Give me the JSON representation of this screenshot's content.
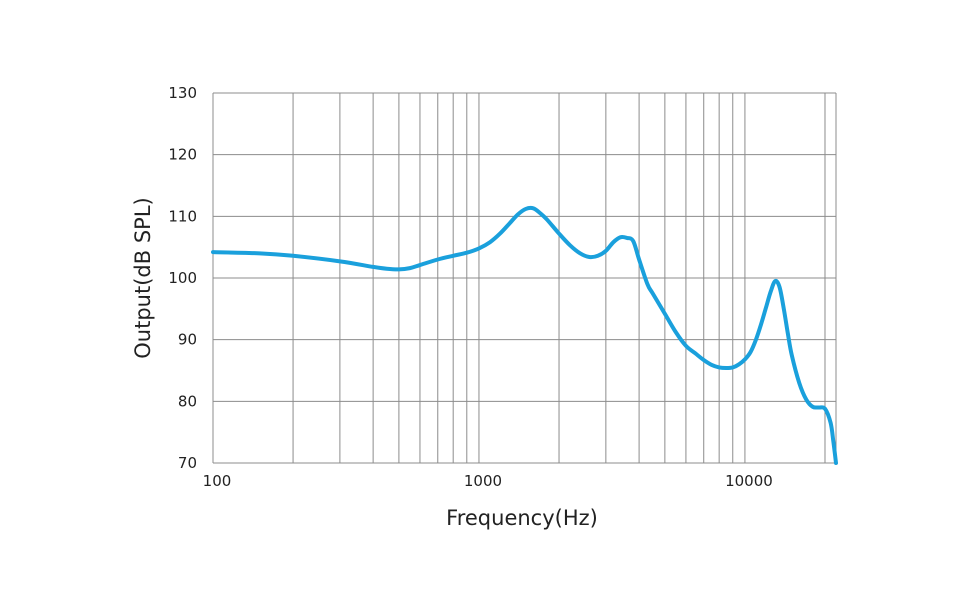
{
  "chart_data": {
    "type": "line",
    "title": "",
    "xlabel": "Frequency(Hz)",
    "ylabel": "Output(dB SPL)",
    "x_scale": "log",
    "xlim": [
      100,
      22000
    ],
    "ylim": [
      70,
      130
    ],
    "grid": true,
    "x_tick_labels": [
      "100",
      "1000",
      "10000"
    ],
    "x_tick_values": [
      100,
      1000,
      10000
    ],
    "y_tick_labels": [
      "130",
      "120",
      "110",
      "100",
      "90",
      "80",
      "70"
    ],
    "y_tick_values": [
      130,
      120,
      110,
      100,
      90,
      80,
      70
    ],
    "line_color": "#1aa0dc",
    "grid_color": "#8c8c8c",
    "series": [
      {
        "x": [
          100,
          150,
          200,
          300,
          400,
          450,
          500,
          550,
          600,
          700,
          800,
          900,
          1000,
          1100,
          1200,
          1300,
          1400,
          1500,
          1600,
          1700,
          1800,
          2000,
          2200,
          2400,
          2600,
          2800,
          3000,
          3200,
          3400,
          3600,
          3800,
          4000,
          4300,
          4500,
          5000,
          5500,
          6000,
          6500,
          7000,
          7500,
          8000,
          8500,
          9000,
          9500,
          10000,
          10500,
          11000,
          11500,
          12000,
          12500,
          13000,
          13500,
          14000,
          14500,
          15000,
          16000,
          17000,
          18000,
          19000,
          20000,
          21000,
          21500,
          22000
        ],
        "y": [
          104.2,
          104.0,
          103.6,
          102.7,
          101.8,
          101.5,
          101.4,
          101.6,
          102.1,
          103.0,
          103.6,
          104.1,
          104.8,
          105.8,
          107.2,
          108.8,
          110.3,
          111.2,
          111.3,
          110.5,
          109.5,
          107.2,
          105.3,
          104.0,
          103.4,
          103.6,
          104.4,
          105.8,
          106.6,
          106.5,
          106.0,
          103.0,
          99.0,
          97.5,
          94.2,
          91.2,
          89.0,
          87.8,
          86.7,
          85.9,
          85.5,
          85.4,
          85.5,
          86.0,
          86.8,
          88.0,
          90.0,
          92.5,
          95.2,
          97.8,
          99.5,
          98.5,
          95.0,
          91.0,
          87.5,
          83.0,
          80.3,
          79.1,
          79.0,
          78.8,
          76.5,
          73.5,
          70.0
        ]
      }
    ]
  }
}
